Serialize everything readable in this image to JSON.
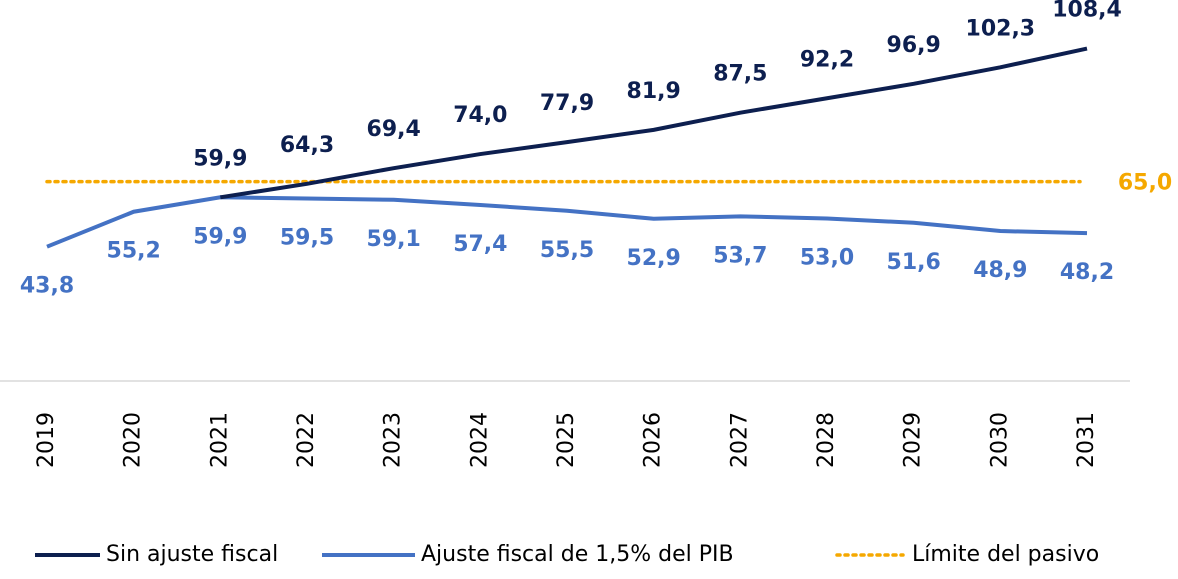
{
  "chart_data": {
    "type": "line",
    "categories": [
      "2019",
      "2020",
      "2021",
      "2022",
      "2023",
      "2024",
      "2025",
      "2026",
      "2027",
      "2028",
      "2029",
      "2030",
      "2031"
    ],
    "series": [
      {
        "name": "Sin ajuste fiscal",
        "color": "#0d1f4f",
        "values": [
          null,
          null,
          59.9,
          64.3,
          69.4,
          74.0,
          77.9,
          81.9,
          87.5,
          92.2,
          96.9,
          102.3,
          108.4
        ],
        "value_labels": [
          null,
          null,
          "59,9",
          "64,3",
          "69,4",
          "74,0",
          "77,9",
          "81,9",
          "87,5",
          "92,2",
          "96,9",
          "102,3",
          "108,4"
        ]
      },
      {
        "name": "Ajuste fiscal de 1,5% del PIB",
        "color": "#4472c4",
        "values": [
          43.8,
          55.2,
          59.9,
          59.5,
          59.1,
          57.4,
          55.5,
          52.9,
          53.7,
          53.0,
          51.6,
          48.9,
          48.2
        ],
        "value_labels": [
          "43,8",
          "55,2",
          "59,9",
          "59,5",
          "59,1",
          "57,4",
          "55,5",
          "52,9",
          "53,7",
          "53,0",
          "51,6",
          "48,9",
          "48,2"
        ]
      }
    ],
    "reference_line": {
      "name": "Límite del pasivo",
      "value": 65.0,
      "label": "65,0",
      "color": "#f5a800"
    },
    "ylim": [
      0,
      120
    ]
  }
}
